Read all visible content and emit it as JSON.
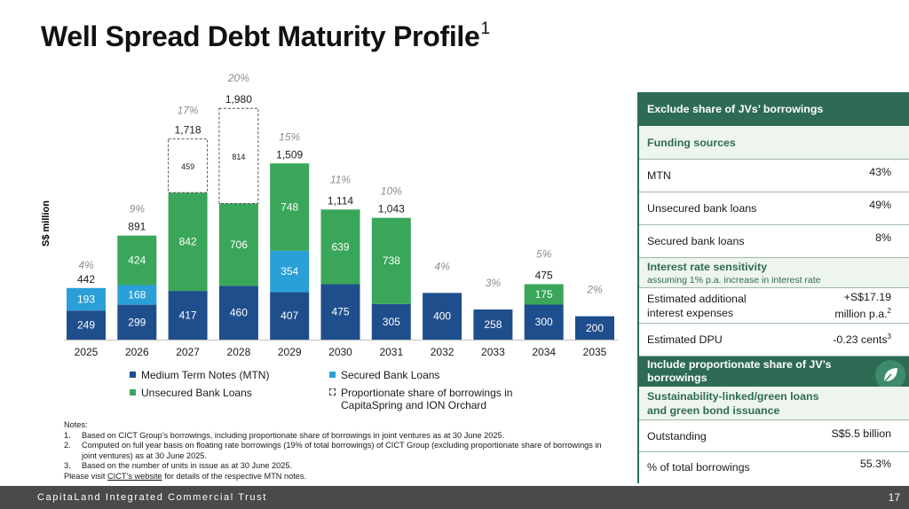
{
  "page": {
    "title": "Well Spread Debt Maturity Profile",
    "title_sup": "1",
    "footer": "CapitaLand Integrated Commercial Trust",
    "page_number": "17"
  },
  "chart_data": {
    "type": "bar",
    "stacked": true,
    "ylabel": "S$ million",
    "categories": [
      "2025",
      "2026",
      "2027",
      "2028",
      "2029",
      "2030",
      "2031",
      "2032",
      "2033",
      "2034",
      "2035"
    ],
    "series": [
      {
        "name": "Medium Term Notes (MTN)",
        "color": "#1f4e8c",
        "values": [
          249,
          299,
          417,
          460,
          407,
          475,
          305,
          400,
          258,
          300,
          200
        ]
      },
      {
        "name": "Secured Bank Loans",
        "color": "#2a9fd8",
        "values": [
          193,
          168,
          0,
          0,
          354,
          0,
          0,
          0,
          0,
          0,
          0
        ]
      },
      {
        "name": "Unsecured Bank Loans",
        "color": "#3aa65a",
        "values": [
          0,
          424,
          842,
          706,
          748,
          639,
          738,
          0,
          0,
          175,
          0
        ]
      },
      {
        "name": "Proportionate share of borrowings in CapitaSpring and ION Orchard",
        "color": "#ffffff",
        "values": [
          0,
          0,
          459,
          814,
          0,
          0,
          0,
          0,
          0,
          0,
          0
        ]
      }
    ],
    "segment_labels": [
      [
        "249",
        "299",
        "417",
        "460",
        "407",
        "475",
        "305",
        "400",
        "258",
        "300",
        "200"
      ],
      [
        "193",
        "168",
        "",
        "",
        "354",
        "",
        "",
        "",
        "",
        "",
        ""
      ],
      [
        "",
        "424",
        "842",
        "706",
        "748",
        "639",
        "738",
        "",
        "",
        "175",
        ""
      ],
      [
        "",
        "",
        "459",
        "814",
        "",
        "",
        "",
        "",
        "",
        "",
        ""
      ]
    ],
    "totals": [
      "442",
      "891",
      "1,718",
      "1,980",
      "1,509",
      "1,114",
      "1,043",
      "",
      "",
      "475",
      ""
    ],
    "percentages": [
      "4%",
      "9%",
      "17%",
      "20%",
      "15%",
      "11%",
      "10%",
      "4%",
      "3%",
      "5%",
      "2%"
    ],
    "legend": [
      {
        "label": "Medium Term Notes (MTN)",
        "color": "#1f4e8c"
      },
      {
        "label": "Secured Bank Loans",
        "color": "#2a9fd8"
      },
      {
        "label": "Unsecured Bank Loans",
        "color": "#3aa65a"
      },
      {
        "label": "Proportionate share of borrowings in",
        "label2": "CapitaSpring and ION Orchard",
        "dashed": true
      }
    ]
  },
  "notes": {
    "heading": "Notes:",
    "items": [
      {
        "num": "1.",
        "text": "Based on CICT Group’s borrowings, including proportionate share of borrowings in joint ventures as at 30 June 2025."
      },
      {
        "num": "2.",
        "text": "Computed on full year basis on floating rate borrowings (19% of total borrowings) of CICT Group (excluding proportionate share of borrowings in",
        "text2": "joint ventures) as at 30 June 2025."
      },
      {
        "num": "3.",
        "text": "Based on the number of units in issue as at 30 June 2025."
      }
    ],
    "visit_pre": "Please visit ",
    "visit_link": "CICT’s website",
    "visit_post": " for details of the respective MTN notes."
  },
  "panel": {
    "header1": "Exclude share of JVs’ borrowings",
    "funding_title": "Funding sources",
    "mtn_label": "MTN",
    "mtn_value": "43%",
    "unsecured_label": "Unsecured bank loans",
    "unsecured_value": "49%",
    "secured_label": "Secured bank loans",
    "secured_value": "8%",
    "interest_title": "Interest rate sensitivity",
    "interest_sub": "assuming 1% p.a. increase in interest rate",
    "est_label1": "Estimated additional",
    "est_label2": "interest expenses",
    "est_value1": "+S$17.19",
    "est_value2": "million p.a.",
    "est_sup": "2",
    "dpu_label": "Estimated DPU",
    "dpu_value": "-0.23 cents",
    "dpu_sup": "3",
    "header2a": "Include proportionate share of JV’s",
    "header2b": "borrowings",
    "sust_title1": "Sustainability-linked/green loans",
    "sust_title2": "and green bond issuance",
    "out_label": "Outstanding",
    "out_value": "S$5.5 billion",
    "pct_label": "% of total borrowings",
    "pct_value": "55.3%"
  }
}
